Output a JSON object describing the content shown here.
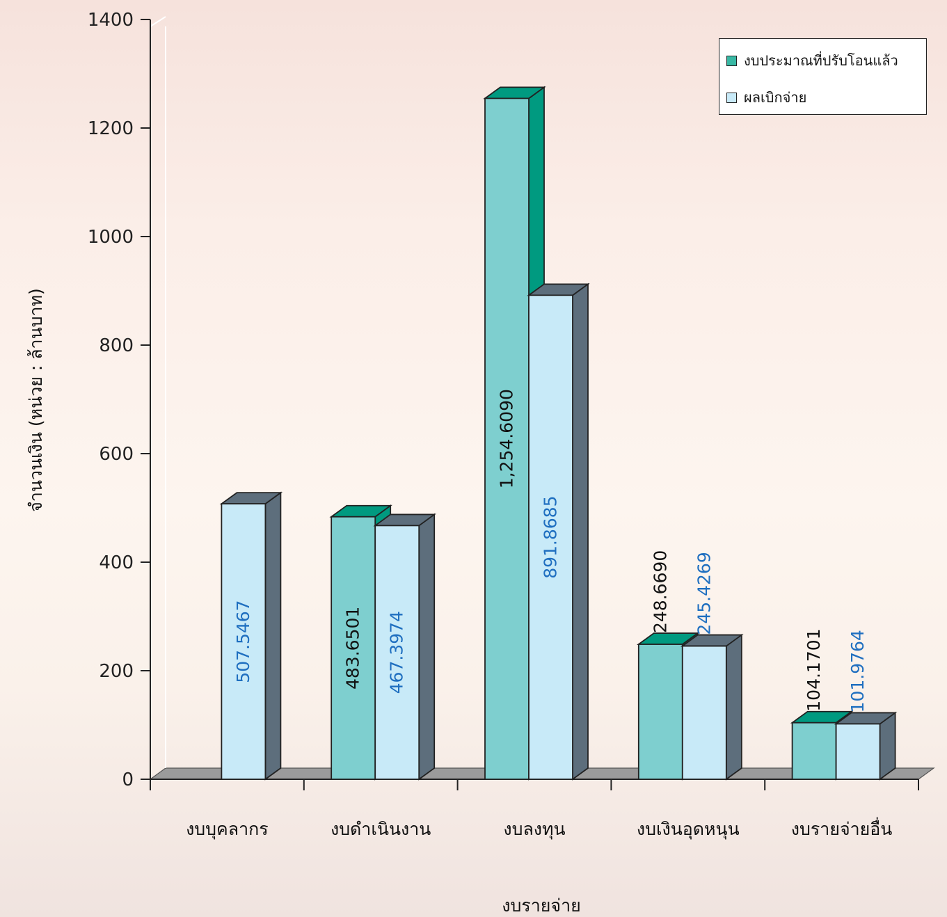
{
  "chart_data": {
    "type": "bar",
    "xlabel": "งบรายจ่าย",
    "ylabel": "จำนวนเงิน (หน่วย : ล้านบาท)",
    "ylim": [
      0,
      1400
    ],
    "yticks": [
      "0",
      "200",
      "400",
      "600",
      "800",
      "1000",
      "1200",
      "1400"
    ],
    "categories": [
      "งบบุคลากร",
      "งบดำเนินงาน",
      "งบลงทุน",
      "งบเงินอุดหนุน",
      "งบรายจ่ายอื่น"
    ],
    "series": [
      {
        "name": "งบประมาณที่ปรับโอนแล้ว",
        "values": [
          null,
          483.6501,
          1254.609,
          248.669,
          104.1701
        ],
        "labels": [
          "",
          "483.6501",
          "1,254.6090",
          "248.6690",
          "104.1701"
        ],
        "color": "#7ecfcf",
        "side_color": "#009a80",
        "label_color": "#111111"
      },
      {
        "name": "ผลเบิกจ่าย",
        "values": [
          507.5467,
          467.3974,
          891.8685,
          245.4269,
          101.9764
        ],
        "labels": [
          "507.5467",
          "467.3974",
          "891.8685",
          "245.4269",
          "101.9764"
        ],
        "color": "#c8eaf8",
        "side_color": "#5d6e7c",
        "label_color": "#1f6fc0"
      }
    ],
    "legend_position": "top-right",
    "grid": false,
    "three_d": true
  }
}
